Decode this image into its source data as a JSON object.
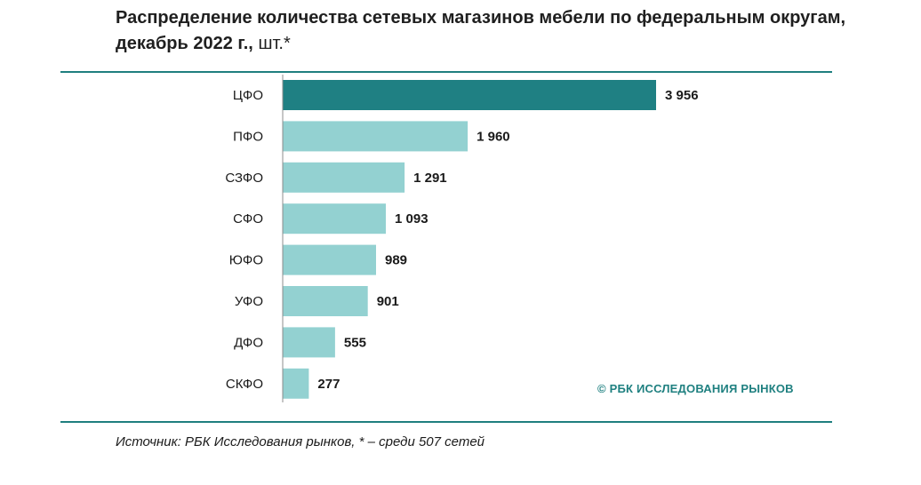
{
  "title": {
    "main": "Распределение количества сетевых магазинов мебели по федеральным округам, декабрь 2022 г.,",
    "unit": "шт.*"
  },
  "watermark": "© РБК ИССЛЕДОВАНИЯ РЫНКОВ",
  "source": "Источник: РБК Исследования рынков, * – среди 507 сетей",
  "colors": {
    "accent": "#1f7f7f",
    "highlight_bar": "#1f8083",
    "bar": "#93d1d1"
  },
  "chart_data": {
    "type": "bar",
    "orientation": "horizontal",
    "categories": [
      "ЦФО",
      "ПФО",
      "СЗФО",
      "СФО",
      "ЮФО",
      "УФО",
      "ДФО",
      "СКФО"
    ],
    "values": [
      3956,
      1960,
      1291,
      1093,
      989,
      901,
      555,
      277
    ],
    "value_labels": [
      "3 956",
      "1 960",
      "1 291",
      "1 093",
      "989",
      "901",
      "555",
      "277"
    ],
    "highlight": "ЦФО",
    "xlim": [
      0,
      3956
    ],
    "grid": false,
    "legend": "none"
  }
}
